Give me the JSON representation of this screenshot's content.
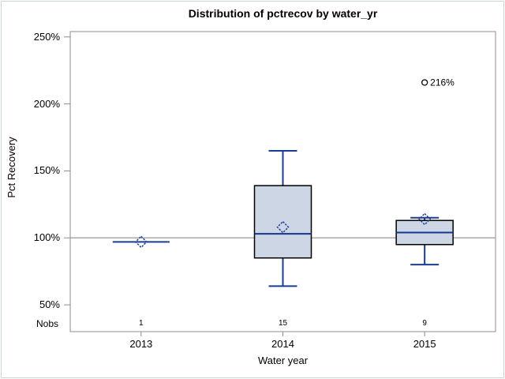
{
  "chart_data": {
    "type": "boxplot",
    "title": "Distribution of pctrecov by water_yr",
    "xlabel": "Water year",
    "ylabel": "Pct Recovery",
    "nobs_label": "Nobs",
    "ylim": [
      30,
      254
    ],
    "yticks": [
      {
        "value": 50,
        "label": "50%"
      },
      {
        "value": 100,
        "label": "100%"
      },
      {
        "value": 150,
        "label": "150%"
      },
      {
        "value": 200,
        "label": "200%"
      },
      {
        "value": 250,
        "label": "250%"
      }
    ],
    "reference_line": 100,
    "grid": false,
    "legend": false,
    "categories": [
      "2013",
      "2014",
      "2015"
    ],
    "series": [
      {
        "category": "2013",
        "nobs": 1,
        "min": 97,
        "q1": 97,
        "median": 97,
        "q3": 97,
        "max": 97,
        "mean": 97,
        "outliers": []
      },
      {
        "category": "2014",
        "nobs": 15,
        "min": 64,
        "q1": 85,
        "median": 103,
        "q3": 139,
        "max": 165,
        "mean": 108,
        "outliers": []
      },
      {
        "category": "2015",
        "nobs": 9,
        "min": 80,
        "q1": 95,
        "median": 104,
        "q3": 113,
        "max": 115,
        "mean": 114,
        "outliers": [
          {
            "value": 216,
            "label": "216%"
          }
        ]
      }
    ],
    "colors": {
      "box_fill": "#cdd6e4",
      "box_border": "#000000",
      "whisker": "#1a3c94",
      "median": "#16368e",
      "mean": "#2342a0",
      "reference_line": "#a8a8a8",
      "axis": "#8c8c8c",
      "outlier": "#000000",
      "text": "#000000",
      "figure_border": "#ccd3da"
    }
  }
}
